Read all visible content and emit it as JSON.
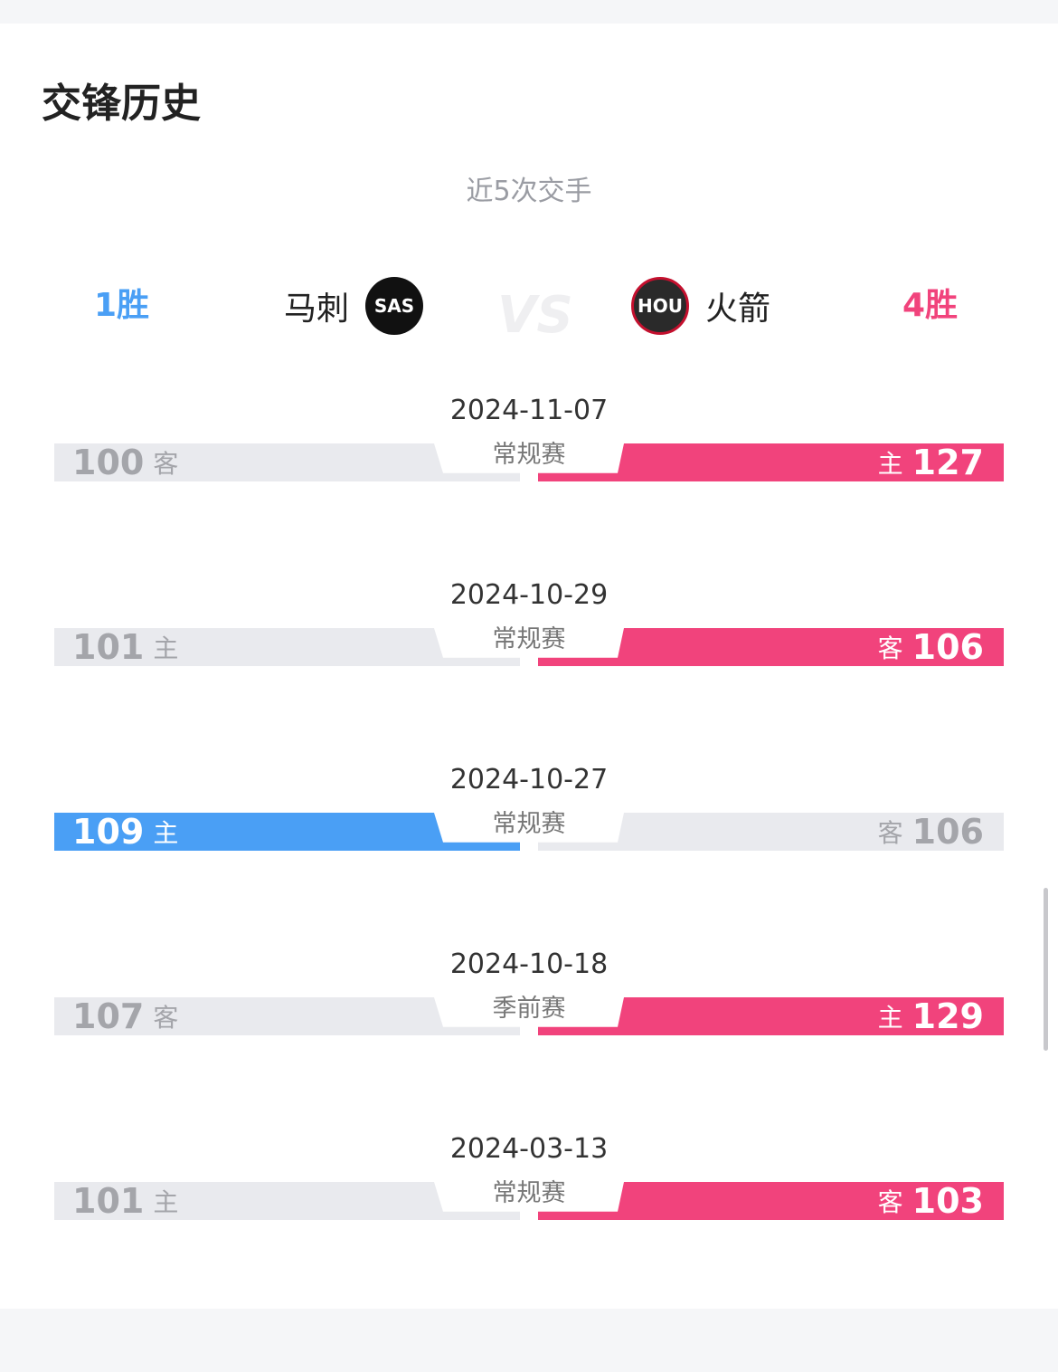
{
  "title": "交锋历史",
  "subtitle": "近5次交手",
  "left_team": {
    "wins": "1胜",
    "name": "马刺",
    "logo_text": "SAS",
    "color": "#4a9ff5"
  },
  "right_team": {
    "wins": "4胜",
    "name": "火箭",
    "logo_text": "HOU",
    "color": "#f1437c"
  },
  "vs": "VS",
  "colors": {
    "left_win": "#4a9ff5",
    "right_win": "#f1437c",
    "neutral": "#e9eaee"
  },
  "matches": [
    {
      "date": "2024-11-07",
      "type": "常规赛",
      "left_score": "100",
      "left_ha": "客",
      "right_score": "127",
      "right_ha": "主",
      "winner": "right"
    },
    {
      "date": "2024-10-29",
      "type": "常规赛",
      "left_score": "101",
      "left_ha": "主",
      "right_score": "106",
      "right_ha": "客",
      "winner": "right"
    },
    {
      "date": "2024-10-27",
      "type": "常规赛",
      "left_score": "109",
      "left_ha": "主",
      "right_score": "106",
      "right_ha": "客",
      "winner": "left"
    },
    {
      "date": "2024-10-18",
      "type": "季前赛",
      "left_score": "107",
      "left_ha": "客",
      "right_score": "129",
      "right_ha": "主",
      "winner": "right"
    },
    {
      "date": "2024-03-13",
      "type": "常规赛",
      "left_score": "101",
      "left_ha": "主",
      "right_score": "103",
      "right_ha": "客",
      "winner": "right"
    }
  ]
}
